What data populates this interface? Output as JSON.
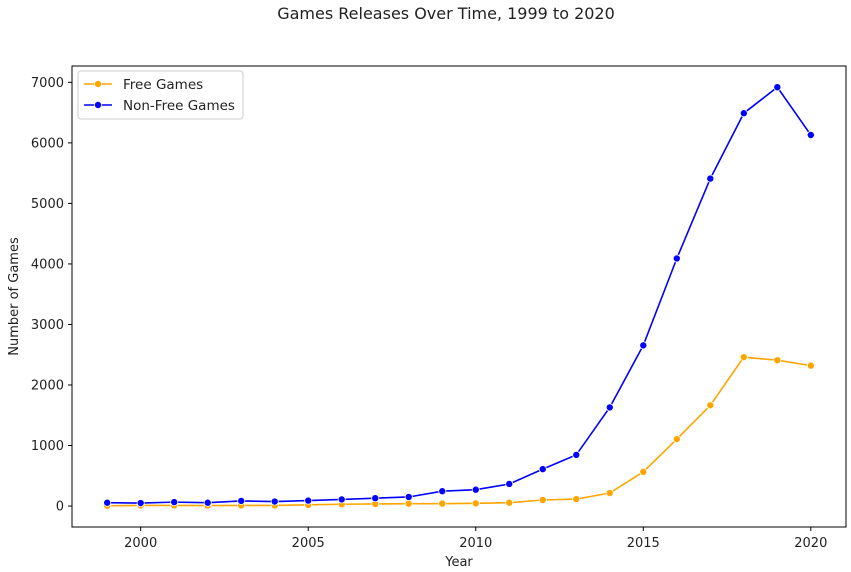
{
  "chart_data": {
    "type": "line",
    "title": "Games Releases Over Time, 1999 to 2020",
    "xlabel": "Year",
    "ylabel": "Number of Games",
    "x": [
      1999,
      2000,
      2001,
      2002,
      2003,
      2004,
      2005,
      2006,
      2007,
      2008,
      2009,
      2010,
      2011,
      2012,
      2013,
      2014,
      2015,
      2016,
      2017,
      2018,
      2019,
      2020
    ],
    "xticks": [
      2000,
      2005,
      2010,
      2015,
      2020
    ],
    "yticks": [
      0,
      1000,
      2000,
      3000,
      4000,
      5000,
      6000,
      7000
    ],
    "xlim": [
      1997.95,
      2021.05
    ],
    "ylim": [
      -346,
      7270
    ],
    "grid": false,
    "legend_position": "upper-left",
    "series": [
      {
        "name": "Free Games",
        "color": "#FFA500",
        "values": [
          5,
          10,
          10,
          8,
          10,
          10,
          20,
          30,
          35,
          40,
          40,
          45,
          55,
          100,
          115,
          215,
          565,
          1105,
          1665,
          2460,
          2410,
          2320
        ]
      },
      {
        "name": "Non-Free Games",
        "color": "#0000FF",
        "values": [
          55,
          50,
          65,
          55,
          85,
          75,
          90,
          110,
          130,
          150,
          245,
          270,
          365,
          610,
          845,
          1630,
          2655,
          4090,
          5410,
          6490,
          6920,
          6130
        ]
      }
    ]
  }
}
